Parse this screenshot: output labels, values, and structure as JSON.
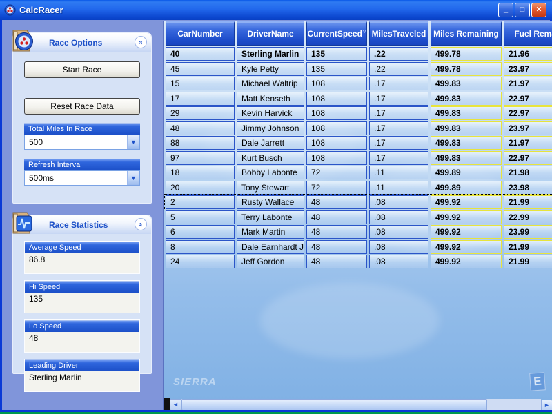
{
  "window": {
    "title": "CalcRacer",
    "controls": {
      "minimize": "_",
      "maximize": "□",
      "close": "✕"
    }
  },
  "sidebar": {
    "race_options": {
      "title": "Race Options",
      "start_button": "Start Race",
      "reset_button": "Reset Race Data",
      "total_miles": {
        "label": "Total Miles In Race",
        "value": "500"
      },
      "refresh_interval": {
        "label": "Refresh Interval",
        "value": "500ms"
      }
    },
    "race_statistics": {
      "title": "Race Statistics",
      "stats": [
        {
          "label": "Average Speed",
          "value": "86.8"
        },
        {
          "label": "Hi Speed",
          "value": "135"
        },
        {
          "label": "Lo Speed",
          "value": "48"
        },
        {
          "label": "Leading Driver",
          "value": "Sterling Marlin"
        }
      ]
    }
  },
  "grid": {
    "columns": [
      {
        "label": "CarNumber",
        "key": "car"
      },
      {
        "label": "DriverName",
        "key": "driver"
      },
      {
        "label": "CurrentSpeed",
        "key": "speed",
        "sort": "desc"
      },
      {
        "label": "MilesTraveled",
        "key": "traveled"
      },
      {
        "label": "Miles Remaining",
        "key": "remaining",
        "highlight": true
      },
      {
        "label": "Fuel Remaining",
        "key": "fuel",
        "highlight": true
      }
    ],
    "rows": [
      {
        "car": "40",
        "driver": "Sterling Marlin",
        "speed": "135",
        "traveled": ".22",
        "remaining": "499.78",
        "fuel": "21.96",
        "leader": true
      },
      {
        "car": "45",
        "driver": "Kyle Petty",
        "speed": "135",
        "traveled": ".22",
        "remaining": "499.78",
        "fuel": "23.97"
      },
      {
        "car": "15",
        "driver": "Michael Waltrip",
        "speed": "108",
        "traveled": ".17",
        "remaining": "499.83",
        "fuel": "21.97"
      },
      {
        "car": "17",
        "driver": "Matt Kenseth",
        "speed": "108",
        "traveled": ".17",
        "remaining": "499.83",
        "fuel": "22.97"
      },
      {
        "car": "29",
        "driver": "Kevin Harvick",
        "speed": "108",
        "traveled": ".17",
        "remaining": "499.83",
        "fuel": "22.97"
      },
      {
        "car": "48",
        "driver": "Jimmy Johnson",
        "speed": "108",
        "traveled": ".17",
        "remaining": "499.83",
        "fuel": "23.97"
      },
      {
        "car": "88",
        "driver": "Dale Jarrett",
        "speed": "108",
        "traveled": ".17",
        "remaining": "499.83",
        "fuel": "21.97"
      },
      {
        "car": "97",
        "driver": "Kurt Busch",
        "speed": "108",
        "traveled": ".17",
        "remaining": "499.83",
        "fuel": "22.97"
      },
      {
        "car": "18",
        "driver": "Bobby Labonte",
        "speed": "72",
        "traveled": ".11",
        "remaining": "499.89",
        "fuel": "21.98"
      },
      {
        "car": "20",
        "driver": "Tony Stewart",
        "speed": "72",
        "traveled": ".11",
        "remaining": "499.89",
        "fuel": "23.98"
      },
      {
        "car": "2",
        "driver": "Rusty Wallace",
        "speed": "48",
        "traveled": ".08",
        "remaining": "499.92",
        "fuel": "21.99",
        "focused": true
      },
      {
        "car": "5",
        "driver": "Terry Labonte",
        "speed": "48",
        "traveled": ".08",
        "remaining": "499.92",
        "fuel": "22.99"
      },
      {
        "car": "6",
        "driver": "Mark Martin",
        "speed": "48",
        "traveled": ".08",
        "remaining": "499.92",
        "fuel": "23.99"
      },
      {
        "car": "8",
        "driver": "Dale Earnhardt Jr",
        "speed": "48",
        "traveled": ".08",
        "remaining": "499.92",
        "fuel": "21.99"
      },
      {
        "car": "24",
        "driver": "Jeff Gordon",
        "speed": "48",
        "traveled": ".08",
        "remaining": "499.92",
        "fuel": "21.99"
      }
    ],
    "watermarks": {
      "sierra": "SIERRA",
      "e_badge": "E"
    }
  }
}
